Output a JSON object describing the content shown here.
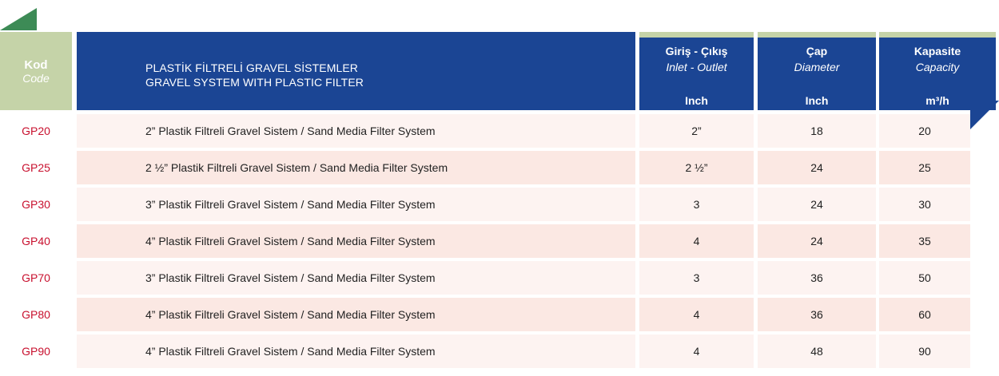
{
  "header": {
    "code": {
      "tr": "Kod",
      "en": "Code"
    },
    "title": {
      "line1": "PLASTİK FİLTRELİ GRAVEL SİSTEMLER",
      "line2": "GRAVEL SYSTEM WITH PLASTIC FILTER"
    },
    "columns": [
      {
        "tr": "Giriş - Çıkış",
        "en": "Inlet - Outlet",
        "unit": "Inch"
      },
      {
        "tr": "Çap",
        "en": "Diameter",
        "unit": "Inch"
      },
      {
        "tr": "Kapasite",
        "en": "Capacity",
        "unit": "m³/h"
      }
    ]
  },
  "rows": [
    {
      "code": "GP20",
      "description": "2” Plastik Filtreli Gravel Sistem / Sand Media Filter System",
      "inlet": "2”",
      "diameter": "18",
      "capacity": "20"
    },
    {
      "code": "GP25",
      "description": "2 ½” Plastik Filtreli Gravel Sistem / Sand Media Filter System",
      "inlet": "2 ½”",
      "diameter": "24",
      "capacity": "25"
    },
    {
      "code": "GP30",
      "description": "3” Plastik Filtreli Gravel Sistem / Sand Media Filter System",
      "inlet": "3",
      "diameter": "24",
      "capacity": "30"
    },
    {
      "code": "GP40",
      "description": "4” Plastik Filtreli Gravel Sistem / Sand Media Filter System",
      "inlet": "4",
      "diameter": "24",
      "capacity": "35"
    },
    {
      "code": "GP70",
      "description": "3” Plastik Filtreli Gravel Sistem / Sand Media Filter System",
      "inlet": "3",
      "diameter": "36",
      "capacity": "50"
    },
    {
      "code": "GP80",
      "description": "4” Plastik Filtreli Gravel Sistem / Sand Media Filter System",
      "inlet": "4",
      "diameter": "36",
      "capacity": "60"
    },
    {
      "code": "GP90",
      "description": "4” Plastik Filtreli Gravel Sistem / Sand Media Filter System",
      "inlet": "4",
      "diameter": "48",
      "capacity": "90"
    }
  ],
  "colors": {
    "header_blue": "#1b4594",
    "header_green": "#c5d3a8",
    "tab_green": "#3d8b56",
    "code_red": "#c8102e",
    "row_odd": "#fdf3f1",
    "row_even": "#fbe8e3"
  }
}
